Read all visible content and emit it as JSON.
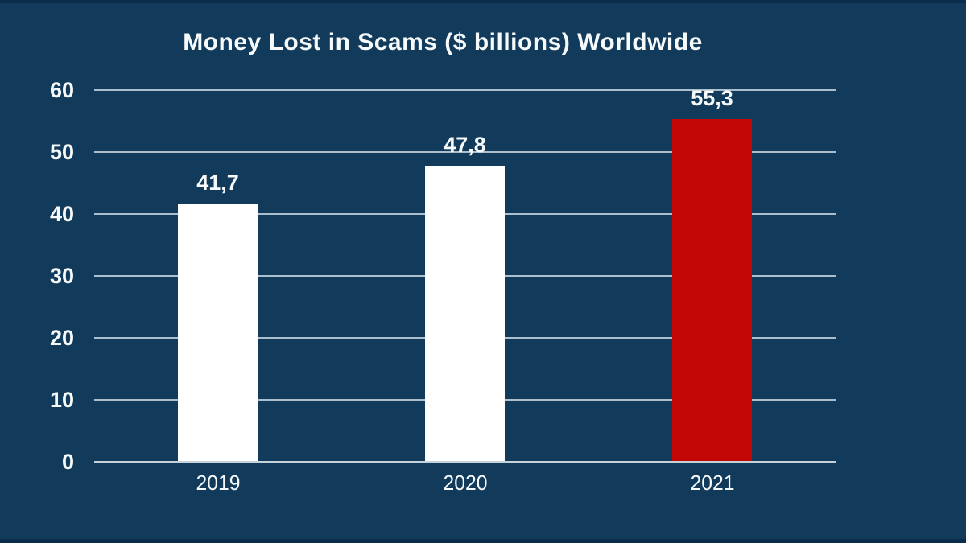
{
  "title": "Money Lost in Scams ($ billions) Worldwide",
  "colors": {
    "background": "#123A5B",
    "edge_strip": "#0C2D4A",
    "gridline": "#ACBFCC",
    "axis_line": "#C6D2DA",
    "text": "#F7FAFB",
    "bar_default": "#FFFFFF",
    "bar_highlight": "#C30707"
  },
  "chart_data": {
    "type": "bar",
    "title": "Money Lost in Scams ($ billions) Worldwide",
    "categories": [
      "2019",
      "2020",
      "2021"
    ],
    "values": [
      41.7,
      47.8,
      55.3
    ],
    "value_labels": [
      "41,7",
      "47,8",
      "55,3"
    ],
    "bar_colors": [
      "#FFFFFF",
      "#FFFFFF",
      "#C30707"
    ],
    "xlabel": "",
    "ylabel": "",
    "ylim": [
      0,
      60
    ],
    "yticks": [
      0,
      10,
      20,
      30,
      40,
      50,
      60
    ],
    "grid": true,
    "legend": "none"
  }
}
